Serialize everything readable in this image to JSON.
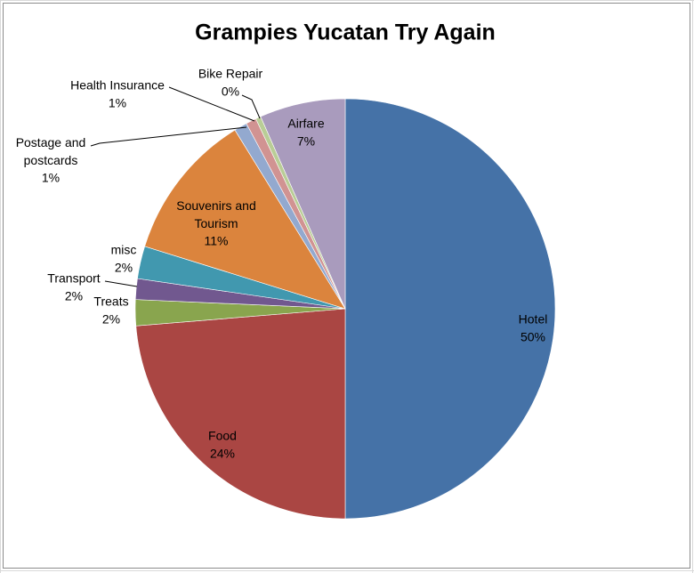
{
  "chart_data": {
    "type": "pie",
    "title": "Grampies Yucatan Try Again",
    "categories": [
      "Hotel",
      "Food",
      "Treats",
      "Transport",
      "misc",
      "Souvenirs and Tourism",
      "Postage and postcards",
      "Health Insurance",
      "Bike Repair",
      "Airfare"
    ],
    "values": [
      50,
      23.7,
      2,
      1.6,
      2.5,
      11.4,
      1,
      0.8,
      0.4,
      6.6
    ],
    "value_labels": [
      "50%",
      "24%",
      "2%",
      "2%",
      "2%",
      "11%",
      "1%",
      "1%",
      "0%",
      "7%"
    ],
    "colors": [
      "#4572a7",
      "#aa4643",
      "#89a54e",
      "#71588f",
      "#4198af",
      "#db843d",
      "#93a9cf",
      "#d19392",
      "#b9cd96",
      "#a99bbd"
    ]
  }
}
